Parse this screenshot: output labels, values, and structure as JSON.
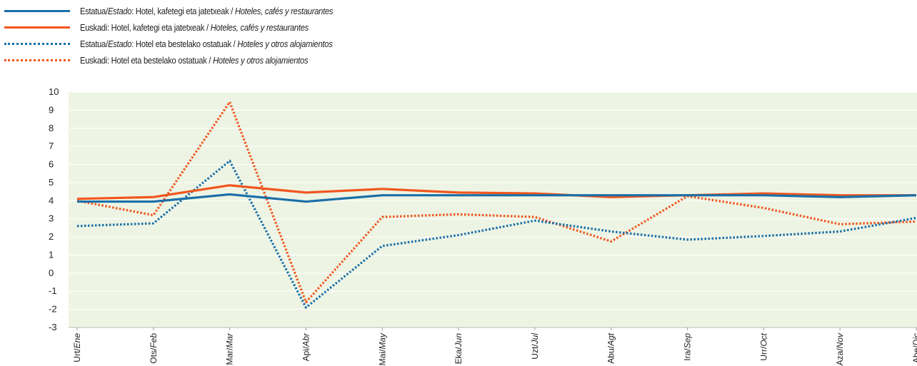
{
  "chart_data": {
    "type": "line",
    "title": "",
    "xlabel": "",
    "ylabel": "",
    "ylim": [
      -3,
      10
    ],
    "yticks": [
      "10",
      "9",
      "8",
      "7",
      "6",
      "5",
      "4",
      "3",
      "2",
      "1",
      "0",
      "-1",
      "-2",
      "-3"
    ],
    "grid": true,
    "legend_position": "top-left",
    "background_color": "#eef4e4",
    "categories": [
      "Urt/Ene",
      "Ots/Feb",
      "Mar/Mar",
      "Api/Abr",
      "Mai/May",
      "Eka/Jun",
      "Uzt/Jul",
      "Abu/Agt",
      "Ira/Sep",
      "Urr/Oct",
      "Aza/Nov",
      "Abe/Dic"
    ],
    "categories_basque": [
      "Urt",
      "Ots",
      "Mar",
      "Api",
      "Mai",
      "Eka",
      "Uzt",
      "Abu",
      "Ira",
      "Urr",
      "Aza",
      "Abe"
    ],
    "categories_spanish": [
      "Ene",
      "Feb",
      "Mar",
      "Abr",
      "May",
      "Jun",
      "Jul",
      "Agt",
      "Sep",
      "Oct",
      "Nov",
      "Dic"
    ],
    "series": [
      {
        "name": "Estatua/Estado: Hotel, kafetegi eta jatetxeak / Hoteles, cafés y restaurantes",
        "legend_plain": "Estatua/",
        "legend_italic": "Estado",
        "legend_rest": ": Hotel, kafetegi eta jatetxeak / ",
        "legend_tail": "Hoteles, cafés y restaurantes",
        "color": "#1a6fa8",
        "style": "solid",
        "values": [
          3.95,
          3.95,
          4.35,
          3.95,
          4.3,
          4.3,
          4.3,
          4.3,
          4.3,
          4.3,
          4.2,
          4.3
        ]
      },
      {
        "name": "Euskadi: Hotel, kafetegi eta jatetxeak / Hoteles, cafés y restaurantes",
        "legend_plain": "Euskadi",
        "legend_italic": "",
        "legend_rest": ": Hotel, kafetegi eta jatetxeak / ",
        "legend_tail": "Hoteles, cafés y restaurantes",
        "color": "#f0561e",
        "style": "solid",
        "values": [
          4.1,
          4.2,
          4.85,
          4.45,
          4.65,
          4.45,
          4.4,
          4.2,
          4.3,
          4.4,
          4.3,
          4.3
        ]
      },
      {
        "name": "Estatua/Estado: Hotel eta bestelako ostatuak / Hoteles y otros alojamientos",
        "legend_plain": "Estatua/",
        "legend_italic": "Estado",
        "legend_rest": ": Hotel eta bestelako ostatuak / ",
        "legend_tail": "Hoteles y otros alojamientos",
        "color": "#1a6fa8",
        "style": "dotted",
        "values": [
          2.6,
          2.75,
          6.2,
          -1.9,
          1.5,
          2.1,
          2.9,
          2.3,
          1.85,
          2.05,
          2.3,
          3.05
        ]
      },
      {
        "name": "Euskadi: Hotel eta bestelako ostatuak / Hoteles y otros alojamientos",
        "legend_plain": "Euskadi",
        "legend_italic": "",
        "legend_rest": ": Hotel eta bestelako ostatuak / ",
        "legend_tail": "Hoteles y otros alojamientos",
        "color": "#f0561e",
        "style": "dotted",
        "values": [
          4.0,
          3.2,
          9.45,
          -1.6,
          3.1,
          3.25,
          3.1,
          1.75,
          4.25,
          3.6,
          2.7,
          2.85
        ]
      }
    ]
  }
}
